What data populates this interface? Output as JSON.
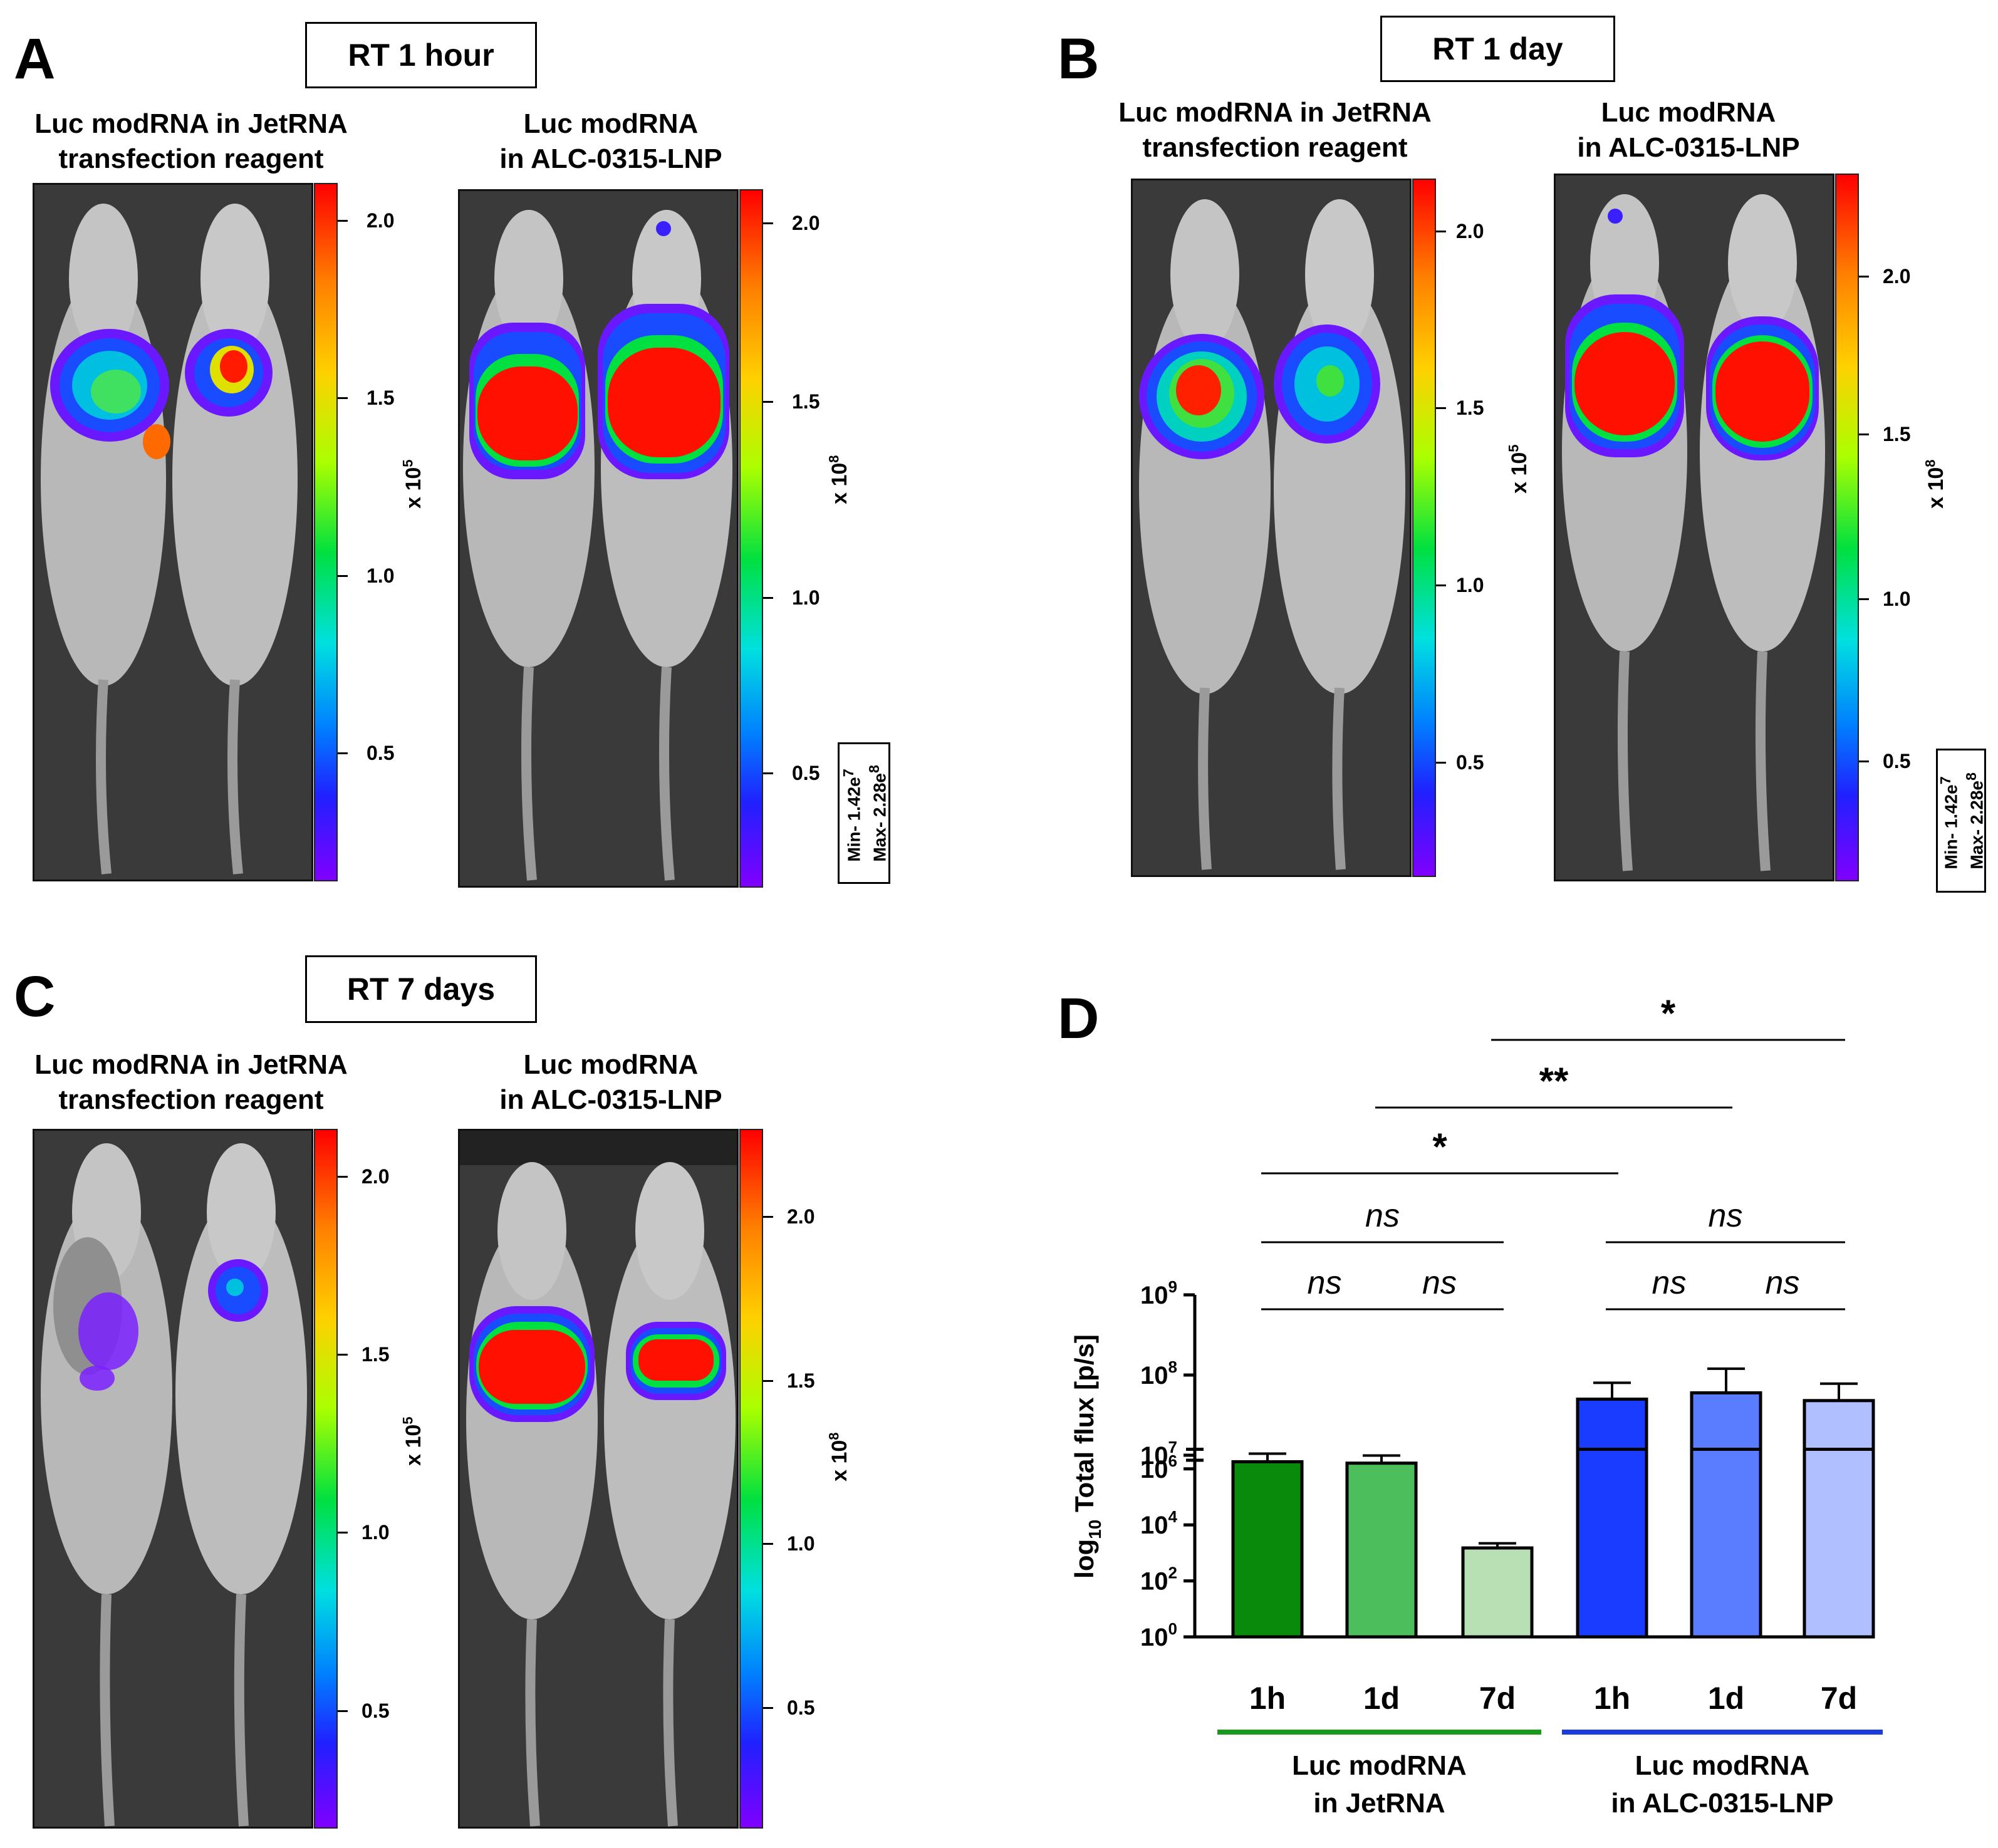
{
  "panels": {
    "A": {
      "letter": "A",
      "timepoint": "RT 1 hour",
      "left_title_l1": "Luc modRNA in JetRNA",
      "left_title_l2": "transfection reagent",
      "right_title_l1": "Luc modRNA",
      "right_title_l2": "in ALC-0315-LNP",
      "left_ticks": [
        "2.0",
        "1.5",
        "1.0",
        "0.5"
      ],
      "right_ticks": [
        "2.0",
        "1.5",
        "1.0",
        "0.5"
      ],
      "left_unit_base": "x 10",
      "left_unit_exp": "5",
      "right_unit_base": "x 10",
      "right_unit_exp": "8",
      "minmax_l1": "Min- 1.42e",
      "minmax_l1_exp": "7",
      "minmax_l2": "Max- 2.28e",
      "minmax_l2_exp": "8"
    },
    "B": {
      "letter": "B",
      "timepoint": "RT 1 day",
      "left_title_l1": "Luc modRNA in JetRNA",
      "left_title_l2": "transfection reagent",
      "right_title_l1": "Luc modRNA",
      "right_title_l2": "in ALC-0315-LNP",
      "left_ticks": [
        "2.0",
        "1.5",
        "1.0",
        "0.5"
      ],
      "right_ticks": [
        "2.0",
        "1.5",
        "1.0",
        "0.5"
      ],
      "left_unit_base": "x 10",
      "left_unit_exp": "5",
      "right_unit_base": "x 10",
      "right_unit_exp": "8",
      "minmax_l1": "Min- 1.42e",
      "minmax_l1_exp": "7",
      "minmax_l2": "Max- 2.28e",
      "minmax_l2_exp": "8"
    },
    "C": {
      "letter": "C",
      "timepoint": "RT 7 days",
      "left_title_l1": "Luc modRNA in JetRNA",
      "left_title_l2": "transfection reagent",
      "right_title_l1": "Luc modRNA",
      "right_title_l2": "in ALC-0315-LNP",
      "left_ticks": [
        "2.0",
        "1.5",
        "1.0",
        "0.5"
      ],
      "right_ticks": [
        "2.0",
        "1.5",
        "1.0",
        "0.5"
      ],
      "left_unit_base": "x 10",
      "left_unit_exp": "5",
      "right_unit_base": "x 10",
      "right_unit_exp": "8"
    },
    "D": {
      "letter": "D"
    }
  },
  "colors": {
    "green_dark": "#0a8a0a",
    "green_mid": "#4cbf5c",
    "green_light": "#b8e0b4",
    "blue_dark": "#1a3cff",
    "blue_mid": "#5a7dff",
    "blue_light": "#b0bfff",
    "group_line_green": "#1a9a1a",
    "group_line_blue": "#1a3cd8"
  },
  "chart_data": {
    "type": "bar",
    "title": "",
    "ylabel": "log",
    "ylabel_sub": "10",
    "ylabel_rest": " Total flux [p/s]",
    "yscale": "log10, broken axis",
    "ylim": [
      1,
      1000000000
    ],
    "y_ticks_lower": [
      {
        "base": "10",
        "exp": "0",
        "value": 1
      },
      {
        "base": "10",
        "exp": "2",
        "value": 100
      },
      {
        "base": "10",
        "exp": "4",
        "value": 10000
      },
      {
        "base": "10",
        "exp": "6",
        "value": 1000000
      }
    ],
    "y_ticks_upper": [
      {
        "base": "10",
        "exp": "7",
        "value": 10000000
      },
      {
        "base": "10",
        "exp": "8",
        "value": 100000000
      },
      {
        "base": "10",
        "exp": "9",
        "value": 1000000000
      }
    ],
    "axis_break": [
      3000000,
      7000000
    ],
    "categories": [
      "1h",
      "1d",
      "7d",
      "1h",
      "1d",
      "7d"
    ],
    "groups": [
      {
        "name_l1": "Luc modRNA",
        "name_l2": "in JetRNA",
        "members": [
          0,
          1,
          2
        ]
      },
      {
        "name_l1": "Luc modRNA",
        "name_l2": "in ALC-0315-LNP",
        "members": [
          3,
          4,
          5
        ]
      }
    ],
    "values": [
      1800000,
      1600000,
      1500,
      50000000,
      60000000,
      48000000
    ],
    "errors_upper": [
      3500000,
      3000000,
      2200,
      80000000,
      120000000,
      78000000
    ],
    "bar_color_keys": [
      "green_dark",
      "green_mid",
      "green_light",
      "blue_dark",
      "blue_mid",
      "blue_light"
    ],
    "significance": [
      {
        "from": 0,
        "to": 1,
        "label": "ns",
        "level": 0
      },
      {
        "from": 1,
        "to": 2,
        "label": "ns",
        "level": 0
      },
      {
        "from": 3,
        "to": 4,
        "label": "ns",
        "level": 0
      },
      {
        "from": 4,
        "to": 5,
        "label": "ns",
        "level": 0
      },
      {
        "from": 0,
        "to": 2,
        "label": "ns",
        "level": 1
      },
      {
        "from": 3,
        "to": 5,
        "label": "ns",
        "level": 1
      },
      {
        "from": 0,
        "to": 3,
        "label": "*",
        "level": 2
      },
      {
        "from": 1,
        "to": 4,
        "label": "**",
        "level": 3
      },
      {
        "from": 2,
        "to": 5,
        "label": "*",
        "level": 4
      }
    ]
  }
}
